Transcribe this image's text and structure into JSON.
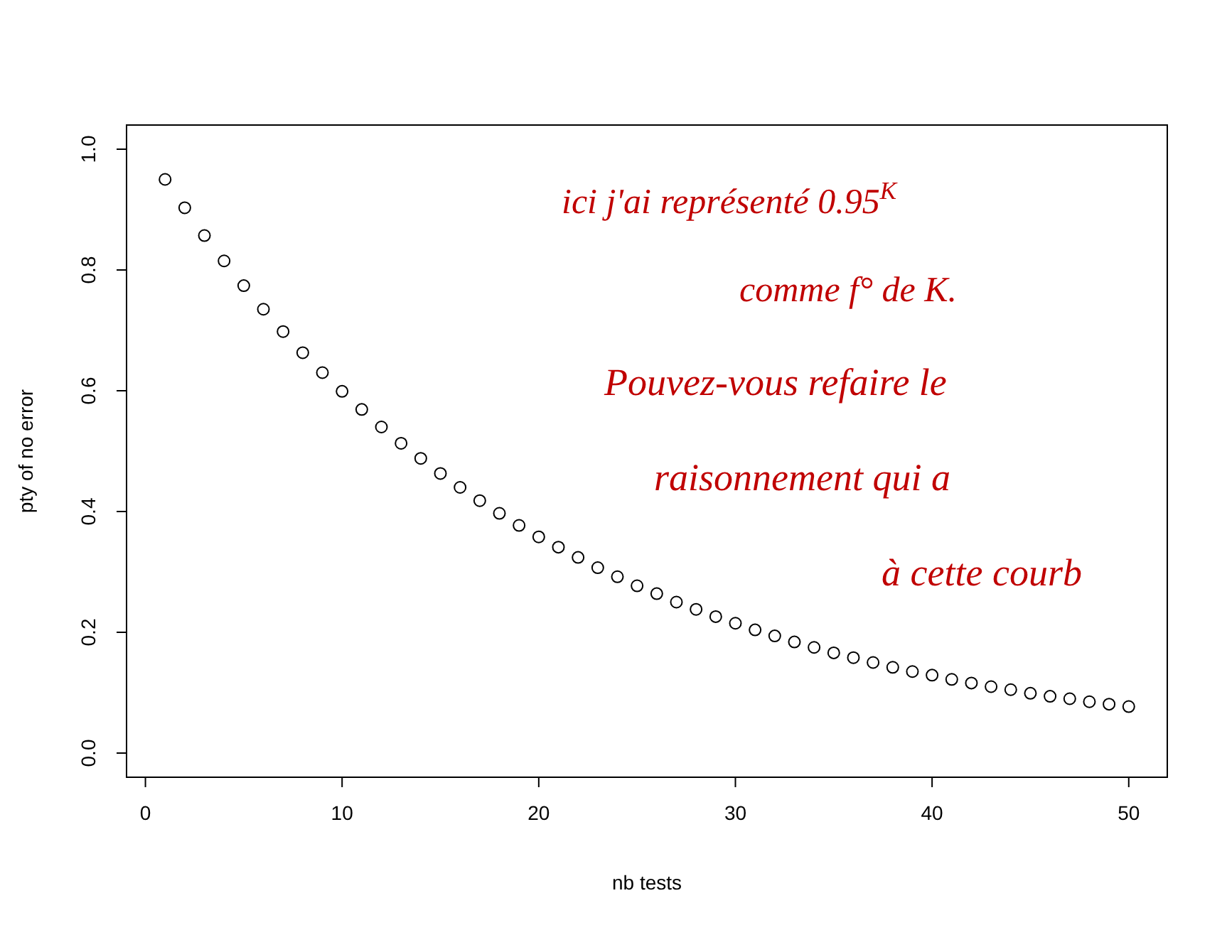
{
  "chart_data": {
    "type": "scatter",
    "xlabel": "nb tests",
    "ylabel": "pty of no error",
    "marker": "circle",
    "grid": false,
    "x": [
      1,
      2,
      3,
      4,
      5,
      6,
      7,
      8,
      9,
      10,
      11,
      12,
      13,
      14,
      15,
      16,
      17,
      18,
      19,
      20,
      21,
      22,
      23,
      24,
      25,
      26,
      27,
      28,
      29,
      30,
      31,
      32,
      33,
      34,
      35,
      36,
      37,
      38,
      39,
      40,
      41,
      42,
      43,
      44,
      45,
      46,
      47,
      48,
      49,
      50
    ],
    "series": [
      {
        "color": "#000000",
        "values": [
          0.95,
          0.903,
          0.857,
          0.815,
          0.774,
          0.735,
          0.698,
          0.663,
          0.63,
          0.599,
          0.569,
          0.54,
          0.513,
          0.488,
          0.463,
          0.44,
          0.418,
          0.397,
          0.377,
          0.358,
          0.341,
          0.324,
          0.307,
          0.292,
          0.277,
          0.264,
          0.25,
          0.238,
          0.226,
          0.215,
          0.204,
          0.194,
          0.184,
          0.175,
          0.166,
          0.158,
          0.15,
          0.142,
          0.135,
          0.129,
          0.122,
          0.116,
          0.11,
          0.105,
          0.099,
          0.094,
          0.09,
          0.085,
          0.081,
          0.077
        ]
      }
    ],
    "xlim": [
      -0.96,
      51.96
    ],
    "ylim": [
      -0.04,
      1.04
    ],
    "xticks": [
      0,
      10,
      20,
      30,
      40,
      50
    ],
    "yticks": [
      {
        "value": 0,
        "label": "0.0"
      },
      0.2,
      0.4,
      0.6,
      0.8,
      {
        "value": 1,
        "label": "1.0"
      }
    ],
    "annotations": [
      "ici j'ai représenté 0.95$^{K}$",
      "comme f° de K.",
      "Pouvez-vous refaire le",
      "raisonnement qui a",
      "à cette courb"
    ]
  }
}
